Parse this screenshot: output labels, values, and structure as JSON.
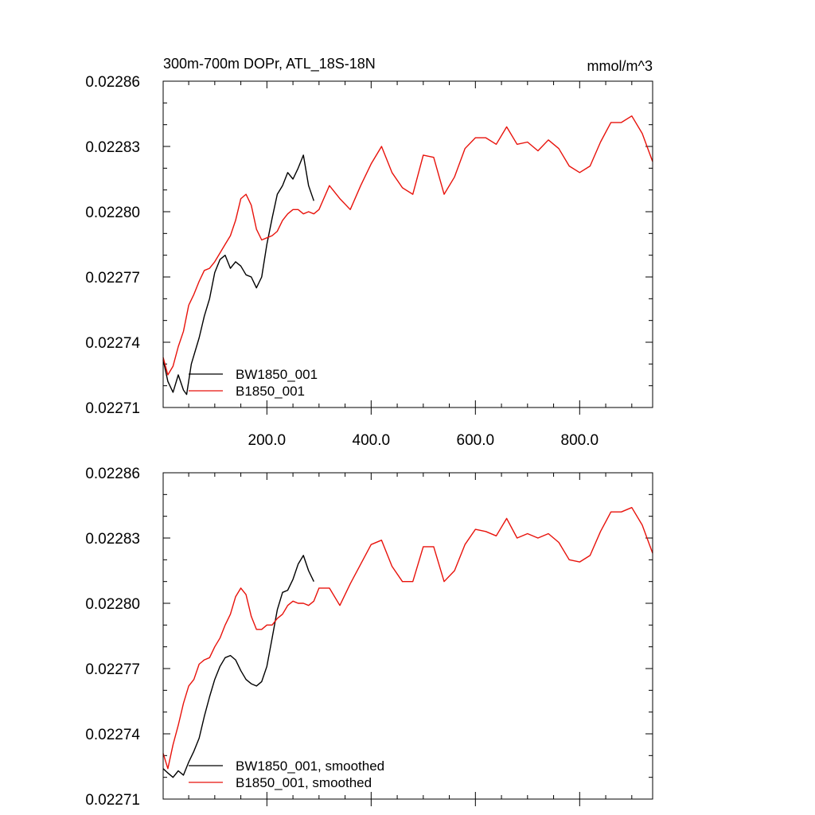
{
  "chart_data": [
    {
      "type": "line",
      "title": "300m-700m DOPr, ATL_18S-18N",
      "units": "mmol/m^3",
      "xlim": [
        1,
        940
      ],
      "ylim": [
        0.02271,
        0.02286
      ],
      "x_tick_labels": [
        "200.0",
        "400.0",
        "600.0",
        "800.0"
      ],
      "y_tick_labels": [
        "0.02271",
        "0.02274",
        "0.02277",
        "0.02280",
        "0.02283",
        "0.02286"
      ],
      "legend_position": "bottom-left",
      "series": [
        {
          "name": "BW1850_001",
          "color": "#000000",
          "x": [
            1,
            10,
            20,
            30,
            40,
            46,
            55,
            70,
            80,
            90,
            100,
            110,
            120,
            130,
            140,
            150,
            160,
            170,
            180,
            190,
            200,
            210,
            220,
            230,
            240,
            250,
            260,
            270,
            280,
            290
          ],
          "y": [
            0.022732,
            0.022722,
            0.022717,
            0.022725,
            0.022718,
            0.022716,
            0.02273,
            0.022742,
            0.022752,
            0.02276,
            0.022772,
            0.022778,
            0.02278,
            0.022774,
            0.022777,
            0.022775,
            0.022771,
            0.02277,
            0.022765,
            0.02277,
            0.022785,
            0.022797,
            0.022808,
            0.022812,
            0.022818,
            0.022815,
            0.02282,
            0.022826,
            0.022812,
            0.022805
          ]
        },
        {
          "name": "B1850_001",
          "color": "#e8120b",
          "x": [
            1,
            10,
            20,
            30,
            40,
            50,
            60,
            70,
            80,
            90,
            100,
            110,
            120,
            130,
            140,
            150,
            160,
            170,
            180,
            190,
            200,
            210,
            220,
            230,
            240,
            250,
            260,
            270,
            280,
            290,
            300,
            320,
            340,
            360,
            380,
            400,
            420,
            440,
            460,
            480,
            500,
            520,
            540,
            560,
            580,
            600,
            620,
            640,
            660,
            680,
            700,
            720,
            740,
            760,
            780,
            800,
            820,
            840,
            860,
            880,
            900,
            920,
            940
          ],
          "y": [
            0.022733,
            0.022725,
            0.022729,
            0.022738,
            0.022745,
            0.022757,
            0.022762,
            0.022768,
            0.022773,
            0.022774,
            0.022777,
            0.022781,
            0.022785,
            0.022789,
            0.022796,
            0.022806,
            0.022808,
            0.022803,
            0.022792,
            0.022787,
            0.022788,
            0.022789,
            0.022791,
            0.022796,
            0.022799,
            0.022801,
            0.022801,
            0.022799,
            0.0228,
            0.022799,
            0.022801,
            0.022812,
            0.022806,
            0.022801,
            0.022812,
            0.022822,
            0.02283,
            0.022818,
            0.022811,
            0.022808,
            0.022826,
            0.022825,
            0.022808,
            0.022816,
            0.022829,
            0.022834,
            0.022834,
            0.022831,
            0.022839,
            0.022831,
            0.022832,
            0.022828,
            0.022833,
            0.022829,
            0.022821,
            0.022818,
            0.022821,
            0.022832,
            0.022841,
            0.022841,
            0.022844,
            0.022836,
            0.022823
          ]
        }
      ]
    },
    {
      "type": "line",
      "title": "",
      "xlim": [
        1,
        940
      ],
      "ylim": [
        0.02271,
        0.02286
      ],
      "y_tick_labels": [
        "0.02271",
        "0.02274",
        "0.02277",
        "0.02280",
        "0.02283",
        "0.02286"
      ],
      "legend_position": "bottom-left",
      "series": [
        {
          "name": "BW1850_001, smoothed",
          "color": "#000000",
          "x": [
            1,
            10,
            20,
            30,
            40,
            50,
            60,
            70,
            80,
            90,
            100,
            110,
            120,
            130,
            140,
            150,
            160,
            170,
            180,
            190,
            200,
            210,
            220,
            230,
            240,
            250,
            260,
            270,
            280,
            290
          ],
          "y": [
            0.022724,
            0.022722,
            0.02272,
            0.022723,
            0.022721,
            0.022727,
            0.022732,
            0.022738,
            0.022748,
            0.022757,
            0.022765,
            0.022771,
            0.022775,
            0.022776,
            0.022774,
            0.022769,
            0.022765,
            0.022763,
            0.022762,
            0.022764,
            0.022771,
            0.022784,
            0.022797,
            0.022805,
            0.022806,
            0.022811,
            0.022818,
            0.022822,
            0.022815,
            0.02281
          ]
        },
        {
          "name": "B1850_001, smoothed",
          "color": "#e8120b",
          "x": [
            1,
            10,
            20,
            30,
            40,
            50,
            60,
            70,
            80,
            90,
            100,
            110,
            120,
            130,
            140,
            150,
            160,
            170,
            180,
            190,
            200,
            210,
            220,
            230,
            240,
            250,
            260,
            270,
            280,
            290,
            300,
            320,
            340,
            360,
            380,
            400,
            420,
            440,
            460,
            480,
            500,
            520,
            540,
            560,
            580,
            600,
            620,
            640,
            660,
            680,
            700,
            720,
            740,
            760,
            780,
            800,
            820,
            840,
            860,
            880,
            900,
            920,
            940
          ],
          "y": [
            0.022731,
            0.022724,
            0.022735,
            0.022744,
            0.022754,
            0.022762,
            0.022765,
            0.022772,
            0.022774,
            0.022775,
            0.02278,
            0.022784,
            0.02279,
            0.022795,
            0.022803,
            0.022807,
            0.022804,
            0.022794,
            0.022788,
            0.022788,
            0.02279,
            0.02279,
            0.022793,
            0.022795,
            0.022799,
            0.022801,
            0.0228,
            0.0228,
            0.022799,
            0.022801,
            0.022807,
            0.022807,
            0.022799,
            0.022809,
            0.022818,
            0.022827,
            0.022829,
            0.022817,
            0.02281,
            0.02281,
            0.022826,
            0.022826,
            0.02281,
            0.022815,
            0.022827,
            0.022834,
            0.022833,
            0.022831,
            0.022839,
            0.02283,
            0.022832,
            0.02283,
            0.022832,
            0.022828,
            0.02282,
            0.022819,
            0.022822,
            0.022833,
            0.022842,
            0.022842,
            0.022844,
            0.022836,
            0.022823
          ]
        }
      ]
    }
  ]
}
